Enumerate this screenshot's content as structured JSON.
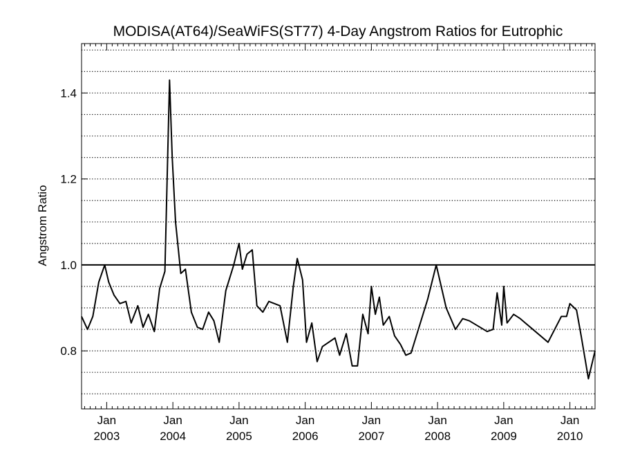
{
  "chart_data": {
    "type": "line",
    "title": "MODISA(AT64)/SeaWiFS(ST77) 4-Day Angstrom Ratios for Eutrophic",
    "ylabel": "Angstrom Ratio",
    "xlabel": "",
    "xlim": [
      2002.62,
      2010.38
    ],
    "ylim": [
      0.665,
      1.515
    ],
    "yticks": [
      0.8,
      1.0,
      1.2,
      1.4
    ],
    "ytick_labels": [
      "0.8",
      "1.0",
      "1.2",
      "1.4"
    ],
    "y_grid_step": 0.05,
    "grid": "horizontal dotted",
    "reference_line": 1.0,
    "xticks": [
      {
        "x": 2003.0,
        "month": "Jan",
        "year": "2003"
      },
      {
        "x": 2004.0,
        "month": "Jan",
        "year": "2004"
      },
      {
        "x": 2005.0,
        "month": "Jan",
        "year": "2005"
      },
      {
        "x": 2006.0,
        "month": "Jan",
        "year": "2006"
      },
      {
        "x": 2007.0,
        "month": "Jan",
        "year": "2007"
      },
      {
        "x": 2008.0,
        "month": "Jan",
        "year": "2008"
      },
      {
        "x": 2009.0,
        "month": "Jan",
        "year": "2009"
      },
      {
        "x": 2010.0,
        "month": "Jan",
        "year": "2010"
      }
    ],
    "series": [
      {
        "x": [
          2002.62,
          2002.71,
          2002.79,
          2002.88,
          2002.97,
          2003.03,
          2003.11,
          2003.2,
          2003.29,
          2003.37,
          2003.47,
          2003.55,
          2003.63,
          2003.72,
          2003.8,
          2003.88,
          2003.95,
          2003.99,
          2004.04,
          2004.12,
          2004.19,
          2004.28,
          2004.37,
          2004.45,
          2004.54,
          2004.62,
          2004.7,
          2004.8,
          2004.92,
          2005.0,
          2005.05,
          2005.12,
          2005.2,
          2005.27,
          2005.36,
          2005.45,
          2005.62,
          2005.73,
          2005.82,
          2005.88,
          2005.96,
          2006.02,
          2006.1,
          2006.18,
          2006.26,
          2006.45,
          2006.52,
          2006.62,
          2006.71,
          2006.79,
          2006.87,
          2006.95,
          2007.0,
          2007.06,
          2007.12,
          2007.18,
          2007.27,
          2007.35,
          2007.44,
          2007.52,
          2007.6,
          2007.67,
          2007.85,
          2007.98,
          2008.13,
          2008.27,
          2008.38,
          2008.48,
          2008.75,
          2008.84,
          2008.9,
          2008.97,
          2009.0,
          2009.05,
          2009.15,
          2009.25,
          2009.67,
          2009.87,
          2009.95,
          2010.0,
          2010.1,
          2010.17,
          2010.28,
          2010.38
        ],
        "y": [
          0.88,
          0.85,
          0.88,
          0.96,
          1.0,
          0.96,
          0.93,
          0.91,
          0.915,
          0.865,
          0.905,
          0.855,
          0.885,
          0.845,
          0.945,
          0.985,
          1.43,
          1.25,
          1.1,
          0.98,
          0.99,
          0.89,
          0.855,
          0.85,
          0.89,
          0.87,
          0.82,
          0.94,
          1.0,
          1.05,
          0.99,
          1.025,
          1.035,
          0.905,
          0.89,
          0.915,
          0.905,
          0.82,
          0.95,
          1.015,
          0.965,
          0.82,
          0.865,
          0.775,
          0.81,
          0.83,
          0.79,
          0.84,
          0.765,
          0.765,
          0.885,
          0.84,
          0.95,
          0.885,
          0.925,
          0.86,
          0.88,
          0.835,
          0.815,
          0.79,
          0.795,
          0.83,
          0.92,
          1.0,
          0.9,
          0.85,
          0.875,
          0.87,
          0.845,
          0.85,
          0.935,
          0.86,
          0.95,
          0.865,
          0.885,
          0.875,
          0.82,
          0.88,
          0.88,
          0.91,
          0.895,
          0.835,
          0.735,
          0.8
        ]
      }
    ]
  }
}
